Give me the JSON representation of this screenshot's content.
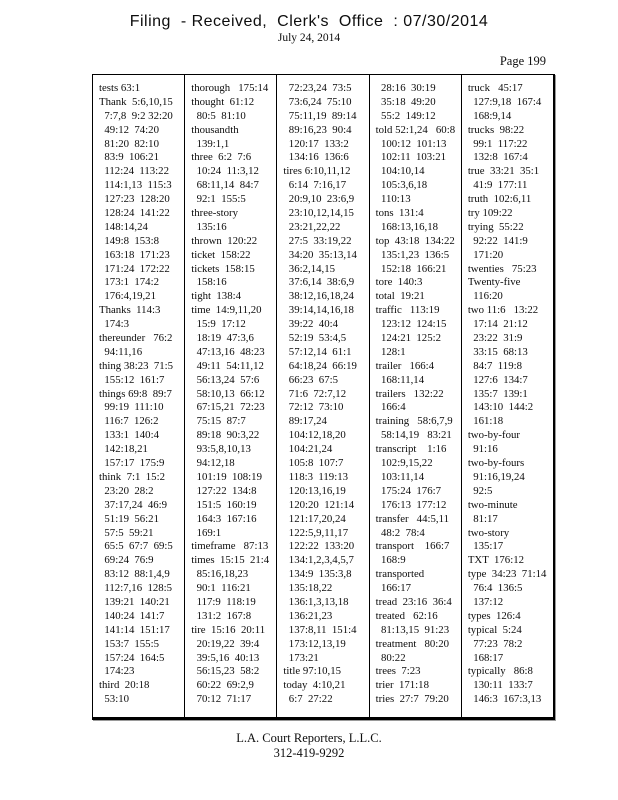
{
  "header": {
    "title": "Filing  - Received,  Clerk's  Office  : 07/30/2014",
    "date": "July 24, 2014",
    "page_label": "Page 199"
  },
  "index": {
    "columns": [
      {
        "lines": [
          "tests 63:1",
          "Thank  5:6,10,15",
          "  7:7,8  9:2 32:20",
          "  49:12  74:20",
          "  81:20  82:10",
          "  83:9  106:21",
          "  112:24  113:22",
          "  114:1,13  115:3",
          "  127:23  128:20",
          "  128:24  141:22",
          "  148:14,24",
          "  149:8  153:8",
          "  163:18  171:23",
          "  171:24  172:22",
          "  173:1  174:2",
          "  176:4,19,21",
          "Thanks  114:3",
          "  174:3",
          "thereunder   76:2",
          "  94:11,16",
          "thing 38:23  71:5",
          "  155:12  161:7",
          "things 69:8  89:7",
          "  99:19  111:10",
          "  116:7  126:2",
          "  133:1  140:4",
          "  142:18,21",
          "  157:17  175:9",
          "think  7:1  15:2",
          "  23:20  28:2",
          "  37:17,24  46:9",
          "  51:19  56:21",
          "  57:5  59:21",
          "  65:5  67:7  69:5",
          "  69:24  76:9",
          "  83:12  88:1,4,9",
          "  112:7,16  128:5",
          "  139:21  140:21",
          "  140:24  141:7",
          "  141:14  151:17",
          "  153:7  155:5",
          "  157:24  164:5",
          "  174:23",
          "third  20:18",
          "  53:10"
        ]
      },
      {
        "lines": [
          "thorough   175:14",
          "thought  61:12",
          "  80:5  81:10",
          "thousandth",
          "  139:1,1",
          "three  6:2  7:6",
          "  10:24  11:3,12",
          "  68:11,14  84:7",
          "  92:1  155:5",
          "three-story",
          "  135:16",
          "thrown  120:22",
          "ticket  158:22",
          "tickets  158:15",
          "  158:16",
          "tight  138:4",
          "time  14:9,11,20",
          "  15:9  17:12",
          "  18:19  47:3,6",
          "  47:13,16  48:23",
          "  49:11  54:11,12",
          "  56:13,24  57:6",
          "  58:10,13  66:12",
          "  67:15,21  72:23",
          "  75:15  87:7",
          "  89:18  90:3,22",
          "  93:5,8,10,13",
          "  94:12,18",
          "  101:19  108:19",
          "  127:22  134:8",
          "  151:5  160:19",
          "  164:3  167:16",
          "  169:1",
          "timeframe   87:13",
          "times  15:15  21:4",
          "  85:16,18,23",
          "  90:1  116:21",
          "  117:9  118:19",
          "  131:2  167:8",
          "tire  15:16  20:11",
          "  20:19,22  39:4",
          "  39:5,16  40:13",
          "  56:15,23  58:2",
          "  60:22  69:2,9",
          "  70:12  71:17"
        ]
      },
      {
        "lines": [
          "  72:23,24  73:5",
          "  73:6,24  75:10",
          "  75:11,19  89:14",
          "  89:16,23  90:4",
          "  120:17  133:2",
          "  134:16  136:6",
          "tires 6:10,11,12",
          "  6:14  7:16,17",
          "  20:9,10  23:6,9",
          "  23:10,12,14,15",
          "  23:21,22,22",
          "  27:5  33:19,22",
          "  34:20  35:13,14",
          "  36:2,14,15",
          "  37:6,14  38:6,9",
          "  38:12,16,18,24",
          "  39:14,14,16,18",
          "  39:22  40:4",
          "  52:19  53:4,5",
          "  57:12,14  61:1",
          "  64:18,24  66:19",
          "  66:23  67:5",
          "  71:6  72:7,12",
          "  72:12  73:10",
          "  89:17,24",
          "  104:12,18,20",
          "  104:21,24",
          "  105:8  107:7",
          "  118:3  119:13",
          "  120:13,16,19",
          "  120:20  121:14",
          "  121:17,20,24",
          "  122:5,9,11,17",
          "  122:22  133:20",
          "  134:1,2,3,4,5,7",
          "  134:9  135:3,8",
          "  135:18,22",
          "  136:1,3,13,18",
          "  136:21,23",
          "  137:8,11  151:4",
          "  173:12,13,19",
          "  173:21",
          "title 97:10,15",
          "today  4:10,21",
          "  6:7  27:22"
        ]
      },
      {
        "lines": [
          "  28:16  30:19",
          "  35:18  49:20",
          "  55:2  149:12",
          "told 52:1,24   60:8",
          "  100:12  101:13",
          "  102:11  103:21",
          "  104:10,14",
          "  105:3,6,18",
          "  110:13",
          "tons  131:4",
          "  168:13,16,18",
          "top  43:18  134:22",
          "  135:1,23  136:5",
          "  152:18  166:21",
          "tore  140:3",
          "total  19:21",
          "traffic   113:19",
          "  123:12  124:15",
          "  124:21  125:2",
          "  128:1",
          "trailer   166:4",
          "  168:11,14",
          "trailers   132:22",
          "  166:4",
          "training   58:6,7,9",
          "  58:14,19   83:21",
          "transcript    1:16",
          "  102:9,15,22",
          "  103:11,14",
          "  175:24  176:7",
          "  176:13  177:12",
          "transfer   44:5,11",
          "  48:2  78:4",
          "transport    166:7",
          "  168:9",
          "transported",
          "  166:17",
          "tread  23:16  36:4",
          "treated   62:16",
          "  81:13,15  91:23",
          "treatment   80:20",
          "  80:22",
          "trees  7:23",
          "trier  171:18",
          "tries  27:7  79:20"
        ]
      },
      {
        "lines": [
          "truck   45:17",
          "  127:9,18  167:4",
          "  168:9,14",
          "trucks  98:22",
          "  99:1  117:22",
          "  132:8  167:4",
          "true  33:21  35:1",
          "  41:9  177:11",
          "truth  102:6,11",
          "try 109:22",
          "trying  55:22",
          "  92:22  141:9",
          "  171:20",
          "twenties   75:23",
          "Twenty-five",
          "  116:20",
          "two 11:6   13:22",
          "  17:14  21:12",
          "  23:22  31:9",
          "  33:15  68:13",
          "  84:7  119:8",
          "  127:6  134:7",
          "  135:7  139:1",
          "  143:10  144:2",
          "  161:18",
          "two-by-four",
          "  91:16",
          "two-by-fours",
          "  91:16,19,24",
          "  92:5",
          "two-minute",
          "  81:17",
          "two-story",
          "  135:17",
          "TXT  176:12",
          "type  34:23  71:14",
          "  76:4  136:5",
          "  137:12",
          "types  126:4",
          "typical  5:24",
          "  77:23  78:2",
          "  168:17",
          "typically   86:8",
          "  130:11  133:7",
          "  146:3  167:3,13"
        ]
      }
    ]
  },
  "footer": {
    "company": "L.A. Court Reporters, L.L.C.",
    "phone": "312-419-9292"
  }
}
